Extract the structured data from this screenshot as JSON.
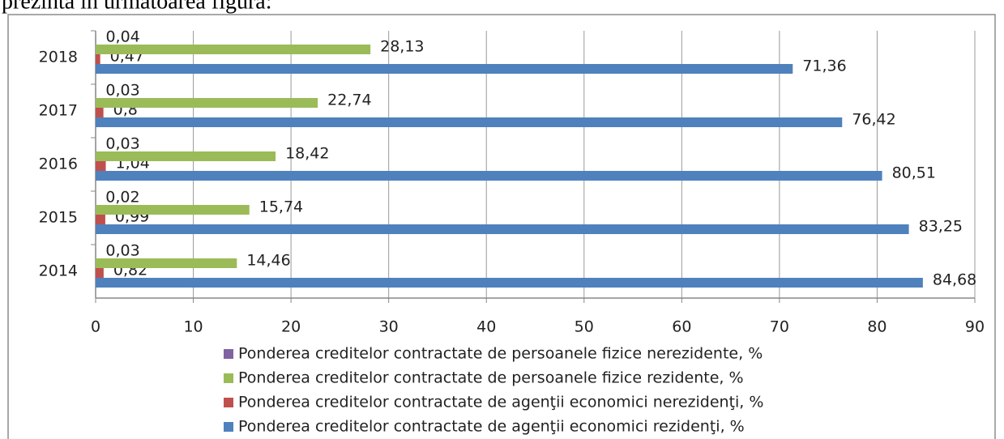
{
  "page_text": "prezintă în următoarea figură:",
  "chart_data": {
    "type": "bar",
    "orientation": "horizontal",
    "categories": [
      "2014",
      "2015",
      "2016",
      "2017",
      "2018"
    ],
    "series": [
      {
        "name": "Ponderea creditelor contractate de agenţii economici rezidenţi, %",
        "color": "#4f81bd",
        "values": [
          84.68,
          83.25,
          80.51,
          76.42,
          71.36
        ],
        "value_labels": [
          "84,68",
          "83,25",
          "80,51",
          "76,42",
          "71,36"
        ]
      },
      {
        "name": "Ponderea creditelor contractate de agenţii economici nerezidenţi, %",
        "color": "#c0504d",
        "values": [
          0.82,
          0.99,
          1.04,
          0.8,
          0.47
        ],
        "value_labels": [
          "0,82",
          "0,99",
          "1,04",
          "0,8",
          "0,47"
        ]
      },
      {
        "name": "Ponderea creditelor contractate de persoanele fizice rezidente, %",
        "color": "#9bbb59",
        "values": [
          14.46,
          15.74,
          18.42,
          22.74,
          28.13
        ],
        "value_labels": [
          "14,46",
          "15,74",
          "18,42",
          "22,74",
          "28,13"
        ]
      },
      {
        "name": "Ponderea creditelor contractate de persoanele fizice nerezidente, %",
        "color": "#8064a2",
        "values": [
          0.03,
          0.02,
          0.03,
          0.03,
          0.04
        ],
        "value_labels": [
          "0,03",
          "0,02",
          "0,03",
          "0,03",
          "0,04"
        ]
      }
    ],
    "xlim": [
      0,
      90
    ],
    "xticks": [
      0,
      10,
      20,
      30,
      40,
      50,
      60,
      70,
      80,
      90
    ],
    "grid": true,
    "legend": "bottom"
  }
}
